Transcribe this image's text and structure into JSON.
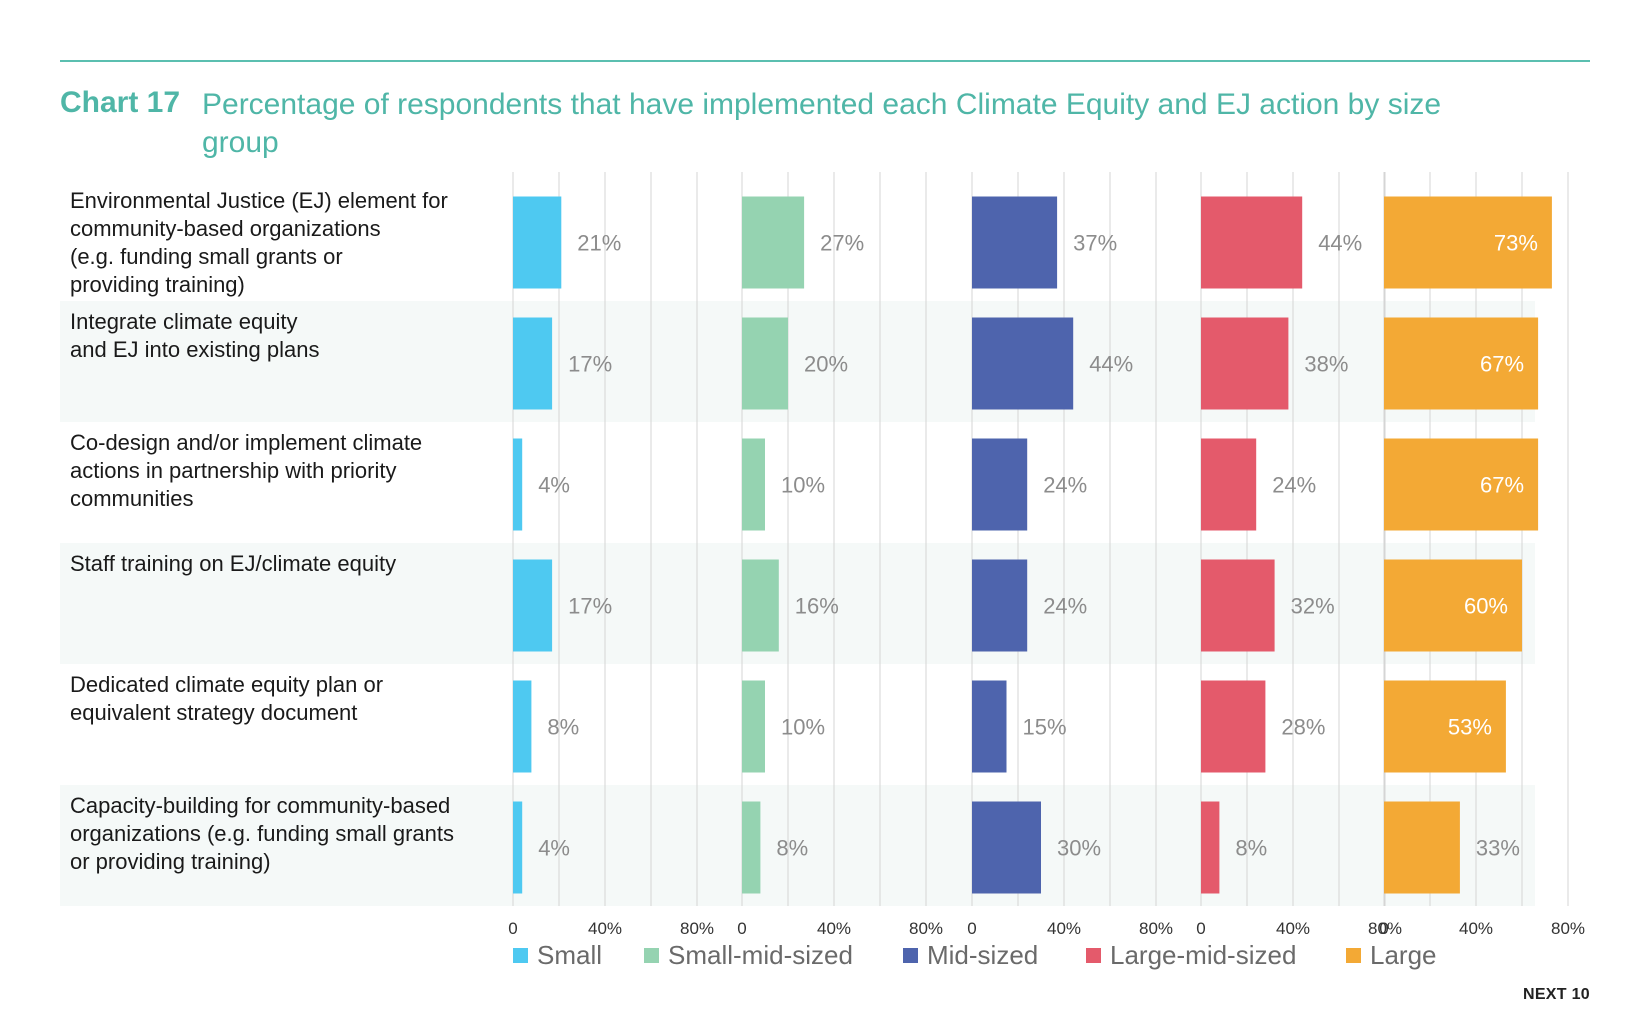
{
  "header": {
    "chart_label": "Chart 17",
    "title": "Percentage of respondents that have implemented each Climate Equity and EJ action by size group"
  },
  "footer": {
    "brand": "NEXT 10"
  },
  "chart_data": {
    "type": "bar",
    "orientation": "horizontal",
    "layout": "small-multiples",
    "title": "Percentage of respondents that have implemented each Climate Equity and EJ action by size group",
    "categories": [
      "Environmental Justice (EJ) element for community-based organizations (e.g. funding small grants or providing training)",
      "Integrate climate equity and EJ into existing plans",
      "Co-design and/or implement climate actions in partnership with priority communities",
      "Staff training on EJ/climate equity",
      "Dedicated climate equity plan or equivalent strategy document",
      "Capacity-building for community-based organizations (e.g. funding small grants or providing training)"
    ],
    "category_lines": [
      [
        "Environmental Justice (EJ) element for",
        "community-based organizations",
        "(e.g. funding small grants or",
        "providing training)"
      ],
      [
        "Integrate climate equity",
        "and EJ into existing plans"
      ],
      [
        "Co-design and/or implement climate",
        "actions in partnership with priority",
        "communities"
      ],
      [
        "Staff training on EJ/climate equity"
      ],
      [
        "Dedicated climate equity plan or",
        "equivalent strategy document"
      ],
      [
        "Capacity-building for community-based",
        "organizations (e.g. funding small grants",
        "or providing training)"
      ]
    ],
    "series": [
      {
        "name": "Small",
        "color": "#4ec9f1",
        "values": [
          21,
          17,
          4,
          17,
          8,
          4
        ],
        "labels": [
          "21%",
          "17%",
          "4%",
          "17%",
          "8%",
          "4%"
        ]
      },
      {
        "name": "Small-mid-sized",
        "color": "#95d3b1",
        "values": [
          27,
          20,
          10,
          16,
          10,
          8
        ],
        "labels": [
          "27%",
          "20%",
          "10%",
          "16%",
          "10%",
          "8%"
        ]
      },
      {
        "name": "Mid-sized",
        "color": "#4e64ad",
        "values": [
          37,
          44,
          24,
          24,
          15,
          30
        ],
        "labels": [
          "37%",
          "44%",
          "24%",
          "24%",
          "15%",
          "30%"
        ]
      },
      {
        "name": "Large-mid-sized",
        "color": "#e45a6b",
        "values": [
          44,
          38,
          24,
          32,
          28,
          8
        ],
        "labels": [
          "44%",
          "38%",
          "24%",
          "32%",
          "28%",
          "8%"
        ]
      },
      {
        "name": "Large",
        "color": "#f3a935",
        "values": [
          73,
          67,
          67,
          60,
          53,
          33
        ],
        "labels": [
          "73%",
          "67%",
          "67%",
          "60%",
          "53%",
          "33%"
        ]
      }
    ],
    "xlim": [
      0,
      80
    ],
    "x_ticks": [
      "0",
      "40%",
      "80%"
    ],
    "grid": true,
    "legend_position": "bottom",
    "value_label_color_inside": "#ffffff",
    "value_label_color_outside": "#8c8c8c",
    "row_band_color": "#f5f9f8",
    "grid_color": "#d5d5d5"
  }
}
